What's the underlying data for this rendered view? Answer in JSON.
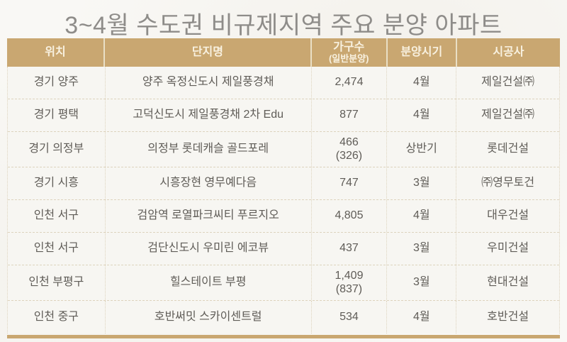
{
  "title": "3~4월 수도권 비규제지역 주요 분양 아파트",
  "chart_data": {
    "type": "table",
    "title": "3~4월 수도권 비규제지역 주요 분양 아파트",
    "columns": [
      {
        "label": "위치",
        "sub": ""
      },
      {
        "label": "단지명",
        "sub": ""
      },
      {
        "label": "가구수",
        "sub": "(일반분양)"
      },
      {
        "label": "분양시기",
        "sub": ""
      },
      {
        "label": "시공사",
        "sub": ""
      }
    ],
    "rows": [
      {
        "location": "경기 양주",
        "complex": "양주 옥정신도시 제일풍경채",
        "units": "2,474",
        "units_sub": "",
        "period": "4월",
        "builder": "제일건설㈜"
      },
      {
        "location": "경기 평택",
        "complex": "고덕신도시 제일풍경채 2차 Edu",
        "units": "877",
        "units_sub": "",
        "period": "4월",
        "builder": "제일건설㈜"
      },
      {
        "location": "경기 의정부",
        "complex": "의정부 롯데캐슬 골드포레",
        "units": "466",
        "units_sub": "(326)",
        "period": "상반기",
        "builder": "롯데건설"
      },
      {
        "location": "경기 시흥",
        "complex": "시흥장현 영무예다음",
        "units": "747",
        "units_sub": "",
        "period": "3월",
        "builder": "㈜영무토건"
      },
      {
        "location": "인천 서구",
        "complex": "검암역 로열파크씨티 푸르지오",
        "units": "4,805",
        "units_sub": "",
        "period": "4월",
        "builder": "대우건설"
      },
      {
        "location": "인천 서구",
        "complex": "검단신도시 우미린 에코뷰",
        "units": "437",
        "units_sub": "",
        "period": "3월",
        "builder": "우미건설"
      },
      {
        "location": "인천 부평구",
        "complex": "힐스테이트 부평",
        "units": "1,409",
        "units_sub": "(837)",
        "period": "3월",
        "builder": "현대건설"
      },
      {
        "location": "인천 중구",
        "complex": "호반써밋 스카이센트럴",
        "units": "534",
        "units_sub": "",
        "period": "4월",
        "builder": "호반건설"
      }
    ]
  },
  "colors": {
    "header_bg": "#c9a771",
    "header_text": "#f8f1e0",
    "body_bg": "#f7f6f2",
    "divider": "#ddd3bd",
    "body_text": "#5f5c57",
    "title_text": "#8e8c89",
    "bottom_bar": "#c9a771"
  }
}
